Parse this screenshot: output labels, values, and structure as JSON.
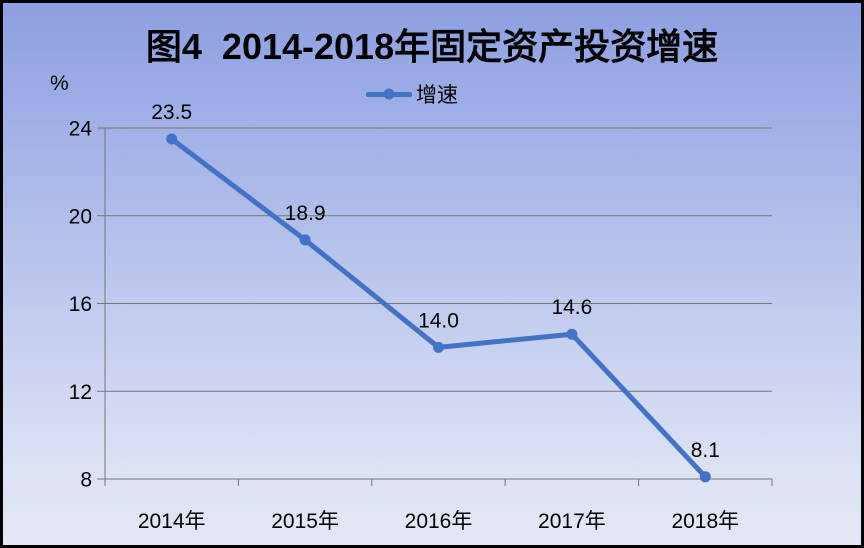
{
  "window": {
    "border_color": "#000000",
    "bg_gradient": [
      "#8C9FE0",
      "#A3B2E7",
      "#C0CAEE",
      "#DCE1F4",
      "#E4E8F6"
    ]
  },
  "title": "图4  2014-2018年固定资产投资增速",
  "axis_unit_label": "%",
  "legend": {
    "label": "增速"
  },
  "colors": {
    "series": "#4472C4",
    "grid": "#767676",
    "axis": "#767676",
    "text": "#000000"
  },
  "chart_data": {
    "type": "line",
    "title": "图4  2014-2018年固定资产投资增速",
    "categories": [
      "2014年",
      "2015年",
      "2016年",
      "2017年",
      "2018年"
    ],
    "series": [
      {
        "name": "增速",
        "values": [
          23.5,
          18.9,
          14.0,
          14.6,
          8.1
        ]
      }
    ],
    "data_labels": [
      "23.5",
      "18.9",
      "14.0",
      "14.6",
      "8.1"
    ],
    "ylabel": "%",
    "xlabel": "",
    "ylim": [
      8,
      24
    ],
    "yticks": [
      8,
      12,
      16,
      20,
      24
    ],
    "grid": true,
    "legend_position": "top-center"
  }
}
